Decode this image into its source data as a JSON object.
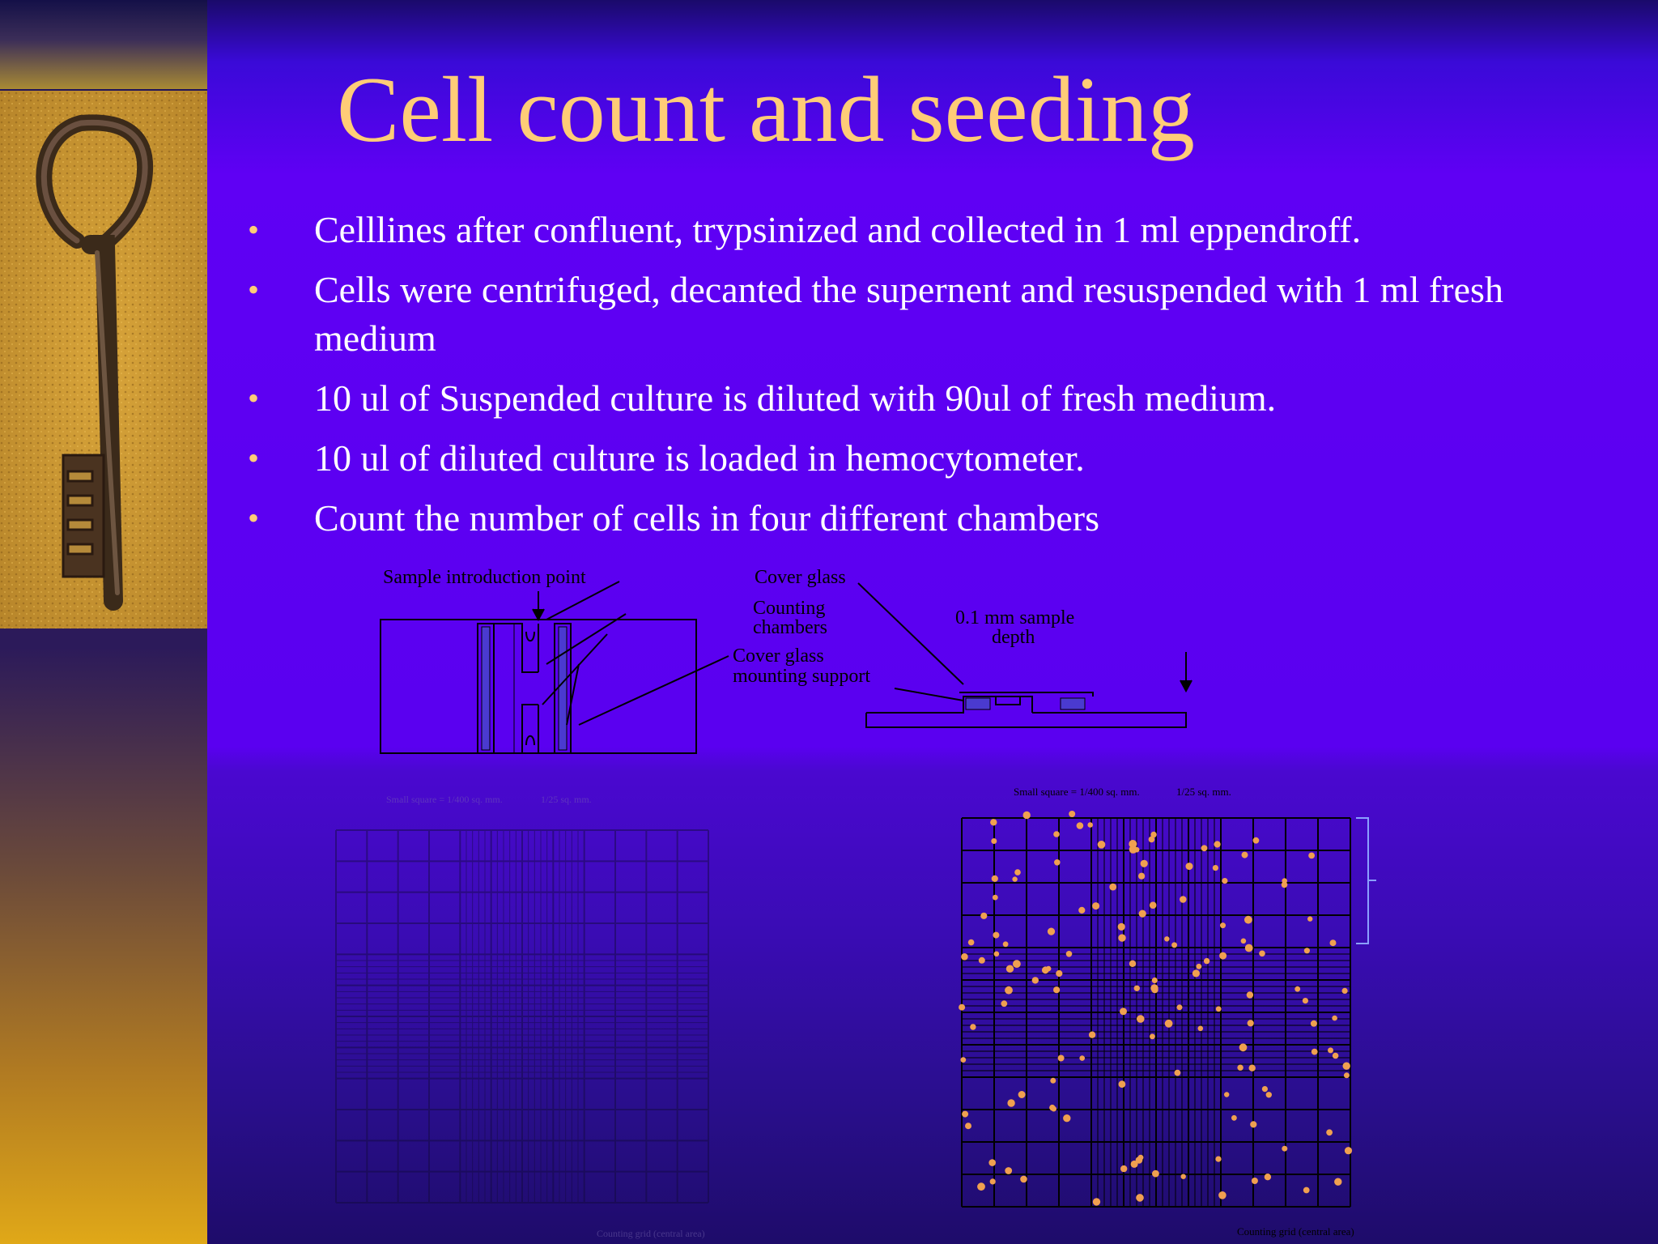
{
  "slide": {
    "title": "Cell count and seeding",
    "bullets": [
      "Celllines after confluent, trypsinized and collected in 1 ml eppendroff.",
      "Cells were centrifuged, decanted the supernent and resuspended with 1 ml fresh medium",
      "10 ul of Suspended culture is diluted with 90ul of fresh medium.",
      "10 ul of diluted culture is loaded in hemocytometer.",
      "Count the number of cells in four different chambers"
    ]
  },
  "diagram": {
    "labels": {
      "sample_point": "Sample introduction point",
      "cover_glass": "Cover glass",
      "counting_1": "Counting",
      "counting_2": "chambers",
      "mount_1": "Cover glass",
      "mount_2": "mounting support",
      "depth_1": "0.1 mm sample",
      "depth_2": "depth"
    }
  },
  "grid_left": {
    "small_square": "Small square = 1/400 sq. mm.",
    "large_square": "1/25 sq. mm.",
    "footer": "Counting grid (central area)"
  },
  "grid_right": {
    "small_square": "Small square = 1/400 sq. mm.",
    "large_square": "1/25 sq. mm.",
    "footer": "Counting grid (central area)"
  },
  "colors": {
    "title": "#ffcc77",
    "bullet_dot": "#ffcc77",
    "text": "#ffffff",
    "cell_dot": "#f0a050"
  },
  "icons": {
    "key_photo": "key-image"
  }
}
